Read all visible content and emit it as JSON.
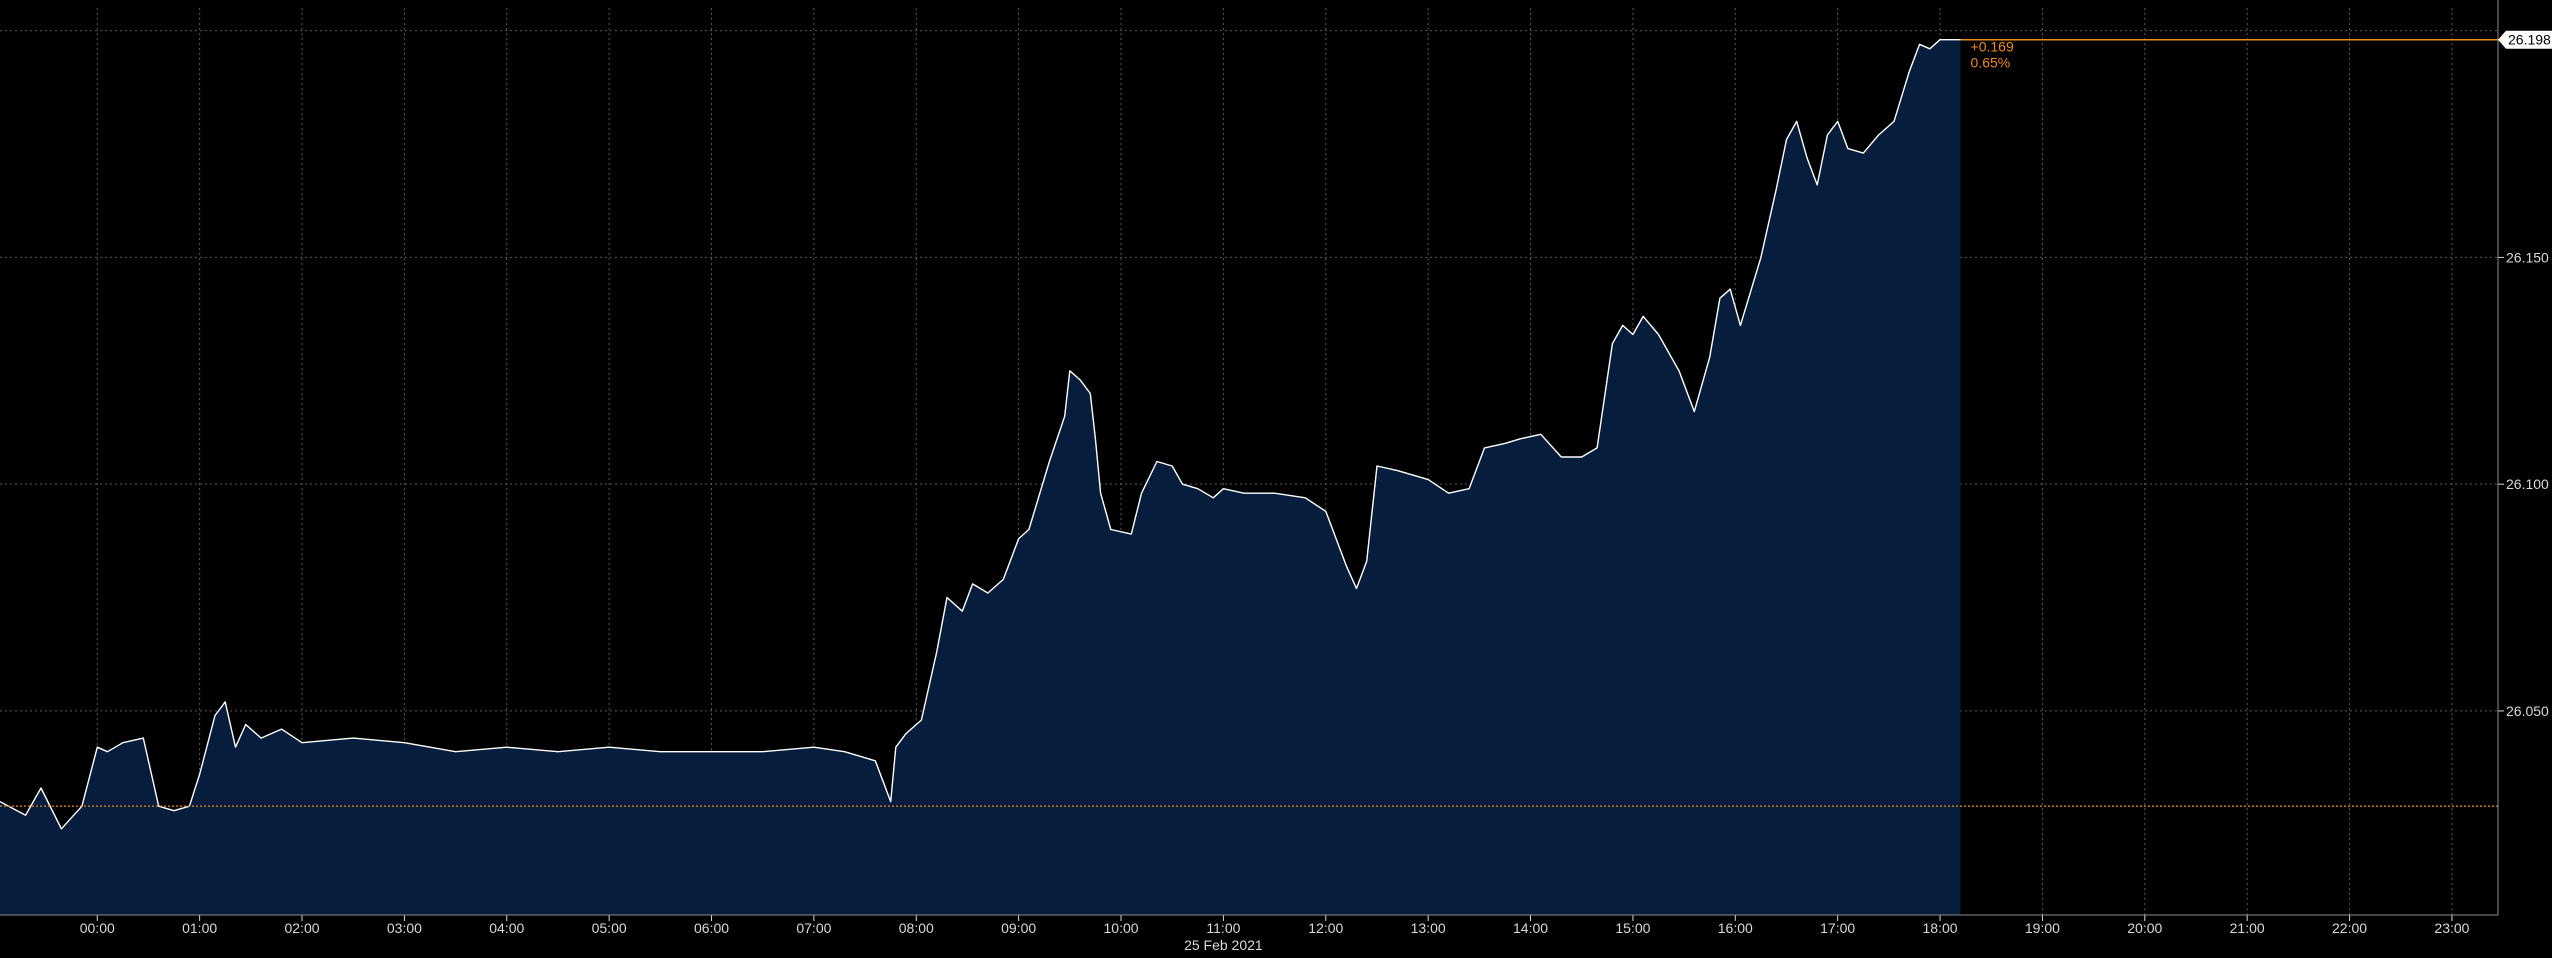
{
  "chart_data": {
    "type": "area",
    "date_label": "25 Feb 2021",
    "x_tick_labels": [
      "00:00",
      "01:00",
      "02:00",
      "03:00",
      "04:00",
      "05:00",
      "06:00",
      "07:00",
      "08:00",
      "09:00",
      "10:00",
      "11:00",
      "12:00",
      "13:00",
      "14:00",
      "15:00",
      "16:00",
      "17:00",
      "18:00",
      "19:00",
      "20:00",
      "21:00",
      "22:00",
      "23:00"
    ],
    "xlim_hours": [
      -0.95,
      23.45
    ],
    "y_tick_labels": [
      "26.050",
      "26.100",
      "26.150"
    ],
    "y_ticks": [
      26.05,
      26.1,
      26.15
    ],
    "ylim": [
      26.005,
      26.205
    ],
    "grid": true,
    "last_value": 26.198,
    "last_value_label": "26.198",
    "prev_close": 26.029,
    "change_label": "+0.169",
    "change_pct_label": "0.65%",
    "colors": {
      "background": "#000000",
      "line": "#ffffff",
      "fill": "#061d3d",
      "reference": "#f08c1a",
      "grid": "#5a5a5a",
      "text": "#d9d9d9"
    },
    "series": [
      {
        "x_hours": [
          -0.95,
          -0.7,
          -0.55,
          -0.35,
          -0.15,
          0.0,
          0.1,
          0.25,
          0.45,
          0.6,
          0.75,
          0.9,
          1.0,
          1.15,
          1.25,
          1.35,
          1.45,
          1.6,
          1.8,
          2.0,
          2.5,
          3.0,
          3.5,
          4.0,
          4.5,
          5.0,
          5.5,
          6.0,
          6.5,
          7.0,
          7.3,
          7.6,
          7.75,
          7.8,
          7.9,
          8.05,
          8.2,
          8.3,
          8.45,
          8.55,
          8.7,
          8.85,
          9.0,
          9.1,
          9.3,
          9.45,
          9.5,
          9.6,
          9.7,
          9.75,
          9.8,
          9.9,
          10.1,
          10.2,
          10.35,
          10.5,
          10.6,
          10.75,
          10.9,
          11.0,
          11.2,
          11.5,
          11.8,
          12.0,
          12.2,
          12.3,
          12.4,
          12.5,
          12.7,
          12.85,
          13.0,
          13.2,
          13.4,
          13.55,
          13.75,
          13.9,
          14.1,
          14.3,
          14.5,
          14.65,
          14.8,
          14.9,
          15.0,
          15.1,
          15.25,
          15.45,
          15.6,
          15.75,
          15.85,
          15.95,
          16.05,
          16.25,
          16.4,
          16.5,
          16.6,
          16.7,
          16.8,
          16.9,
          17.0,
          17.1,
          17.25,
          17.4,
          17.55,
          17.7,
          17.8,
          17.9,
          18.0,
          18.1,
          18.2
        ],
        "y": [
          26.03,
          26.027,
          26.033,
          26.024,
          26.029,
          26.042,
          26.041,
          26.043,
          26.044,
          26.029,
          26.028,
          26.029,
          26.036,
          26.049,
          26.052,
          26.042,
          26.047,
          26.044,
          26.046,
          26.043,
          26.044,
          26.043,
          26.041,
          26.042,
          26.041,
          26.042,
          26.041,
          26.041,
          26.041,
          26.042,
          26.041,
          26.039,
          26.03,
          26.042,
          26.045,
          26.048,
          26.063,
          26.075,
          26.072,
          26.078,
          26.076,
          26.079,
          26.088,
          26.09,
          26.105,
          26.115,
          26.125,
          26.123,
          26.12,
          26.11,
          26.098,
          26.09,
          26.089,
          26.098,
          26.105,
          26.104,
          26.1,
          26.099,
          26.097,
          26.099,
          26.098,
          26.098,
          26.097,
          26.094,
          26.082,
          26.077,
          26.083,
          26.104,
          26.103,
          26.102,
          26.101,
          26.098,
          26.099,
          26.108,
          26.109,
          26.11,
          26.111,
          26.106,
          26.106,
          26.108,
          26.131,
          26.135,
          26.133,
          26.137,
          26.133,
          26.125,
          26.116,
          26.128,
          26.141,
          26.143,
          26.135,
          26.15,
          26.165,
          26.176,
          26.18,
          26.172,
          26.166,
          26.177,
          26.18,
          26.174,
          26.173,
          26.177,
          26.18,
          26.191,
          26.197,
          26.196,
          26.198,
          26.198,
          26.198
        ]
      }
    ]
  }
}
